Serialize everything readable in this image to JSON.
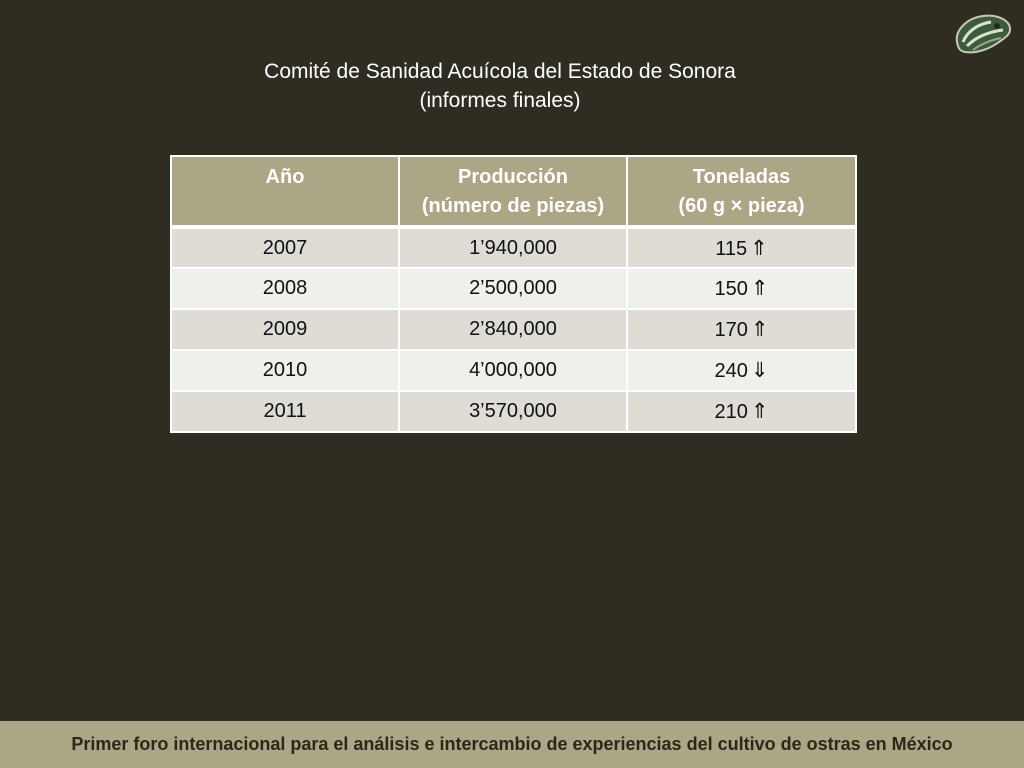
{
  "title": {
    "line1": "Comité de Sanidad Acuícola del Estado de Sonora",
    "line2": "(informes finales)"
  },
  "table": {
    "headers": [
      {
        "line1": "Año",
        "line2": ""
      },
      {
        "line1": "Producción",
        "line2": "(número de piezas)"
      },
      {
        "line1": "Toneladas",
        "line2": "(60 g × pieza)"
      }
    ],
    "rows": [
      {
        "year": "2007",
        "production": "1’940,000",
        "tons": "115",
        "arrow": "⇑",
        "trend": "up"
      },
      {
        "year": "2008",
        "production": "2’500,000",
        "tons": "150",
        "arrow": "⇑",
        "trend": "up"
      },
      {
        "year": "2009",
        "production": "2’840,000",
        "tons": "170",
        "arrow": "⇑",
        "trend": "up"
      },
      {
        "year": "2010",
        "production": "4’000,000",
        "tons": "240",
        "arrow": "⇓",
        "trend": "down"
      },
      {
        "year": "2011",
        "production": "3’570,000",
        "tons": "210",
        "arrow": "⇑",
        "trend": "up"
      }
    ]
  },
  "footer": {
    "text": "Primer foro internacional para el análisis e intercambio de experiencias del cultivo de ostras en México"
  },
  "logo": {
    "icon": "oyster-logo-icon"
  },
  "colors": {
    "background": "#2f2d21",
    "header_fill": "#aba686",
    "row_odd": "#dedcd5",
    "row_even": "#efefec",
    "footer_bar": "#aba686"
  }
}
